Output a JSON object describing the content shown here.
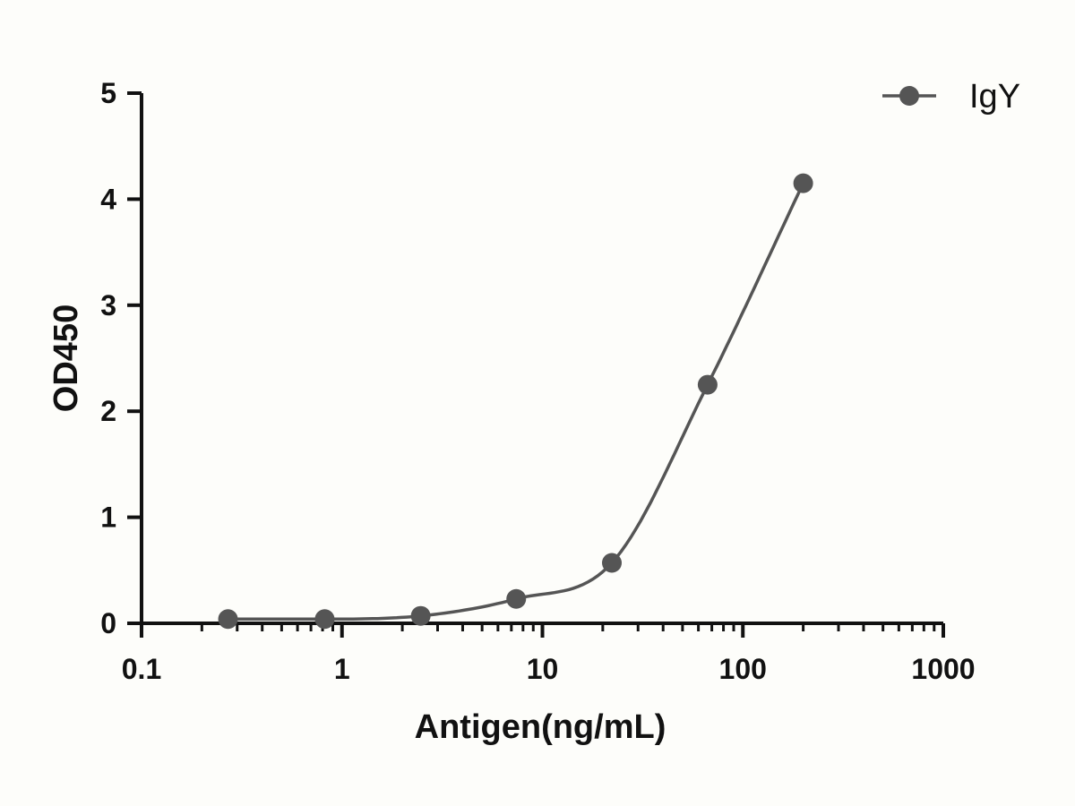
{
  "chart_data": {
    "type": "scatter",
    "xlabel": "Antigen(ng/mL)",
    "ylabel": "OD450",
    "x_scale": "log",
    "xlim": [
      0.1,
      1000
    ],
    "ylim": [
      0,
      5
    ],
    "x_ticks": [
      "0.1",
      "1",
      "10",
      "100",
      "1000"
    ],
    "y_ticks": [
      "0",
      "1",
      "2",
      "3",
      "4",
      "5"
    ],
    "grid": false,
    "legend_position": "top-right",
    "series": [
      {
        "name": "IgY",
        "color": "#555555",
        "marker": "circle",
        "fit": "sigmoidal",
        "x": [
          0.27,
          0.82,
          2.47,
          7.4,
          22.2,
          66.7,
          200
        ],
        "y": [
          0.04,
          0.04,
          0.07,
          0.23,
          0.57,
          2.25,
          4.15
        ]
      }
    ]
  }
}
